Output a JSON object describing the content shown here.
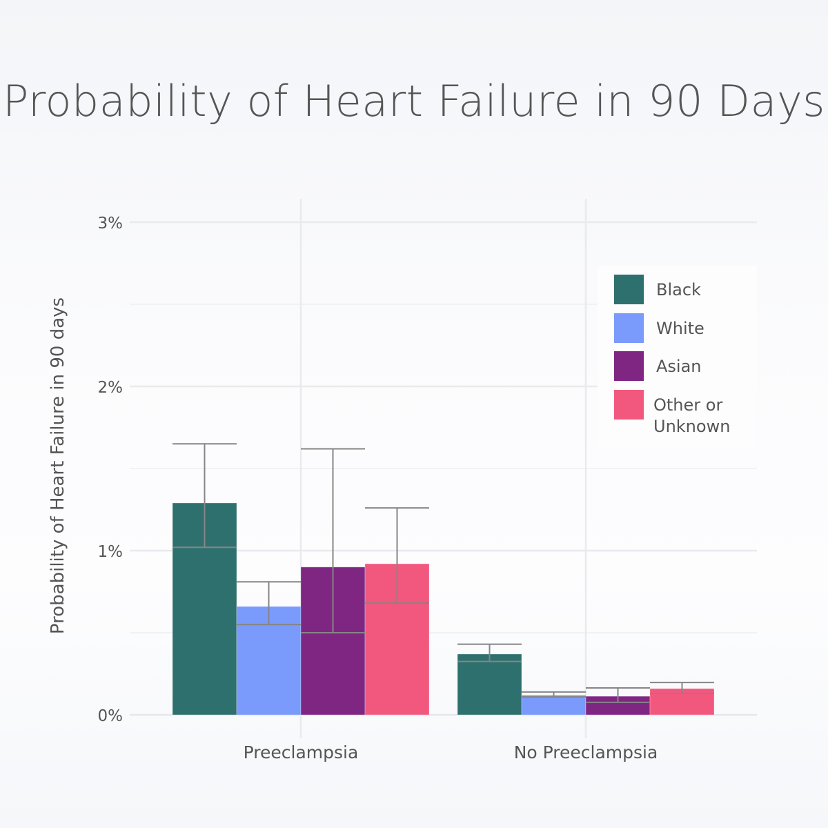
{
  "chart_data": {
    "type": "bar",
    "title": "Probability of Heart Failure in 90 Days",
    "xlabel": "",
    "ylabel": "Probability of Heart Failure in 90 days",
    "ylim": [
      0,
      3.0
    ],
    "y_ticks": [
      0,
      1,
      2,
      3
    ],
    "y_tick_labels": [
      "0%",
      "1%",
      "2%",
      "3%"
    ],
    "grid": true,
    "legend_position": "top-right",
    "categories": [
      "Preeclampsia",
      "No Preeclampsia"
    ],
    "series": [
      {
        "name": "Black",
        "color": "#2e706e",
        "values": [
          1.29,
          0.37
        ],
        "error_upper": [
          1.65,
          0.43
        ],
        "error_lower": [
          1.02,
          0.325
        ]
      },
      {
        "name": "White",
        "color": "#7a9afc",
        "values": [
          0.66,
          0.12
        ],
        "error_upper": [
          0.81,
          0.139
        ],
        "error_lower": [
          0.55,
          0.109
        ]
      },
      {
        "name": "Asian",
        "color": "#7f2683",
        "values": [
          0.9,
          0.113
        ],
        "error_upper": [
          1.62,
          0.164
        ],
        "error_lower": [
          0.5,
          0.076
        ]
      },
      {
        "name": "Other or Unknown",
        "name_lines": [
          "Other or",
          "Unknown"
        ],
        "color": "#f2587e",
        "values": [
          0.92,
          0.16
        ],
        "error_upper": [
          1.26,
          0.197
        ],
        "error_lower": [
          0.68,
          0.13
        ]
      }
    ]
  }
}
